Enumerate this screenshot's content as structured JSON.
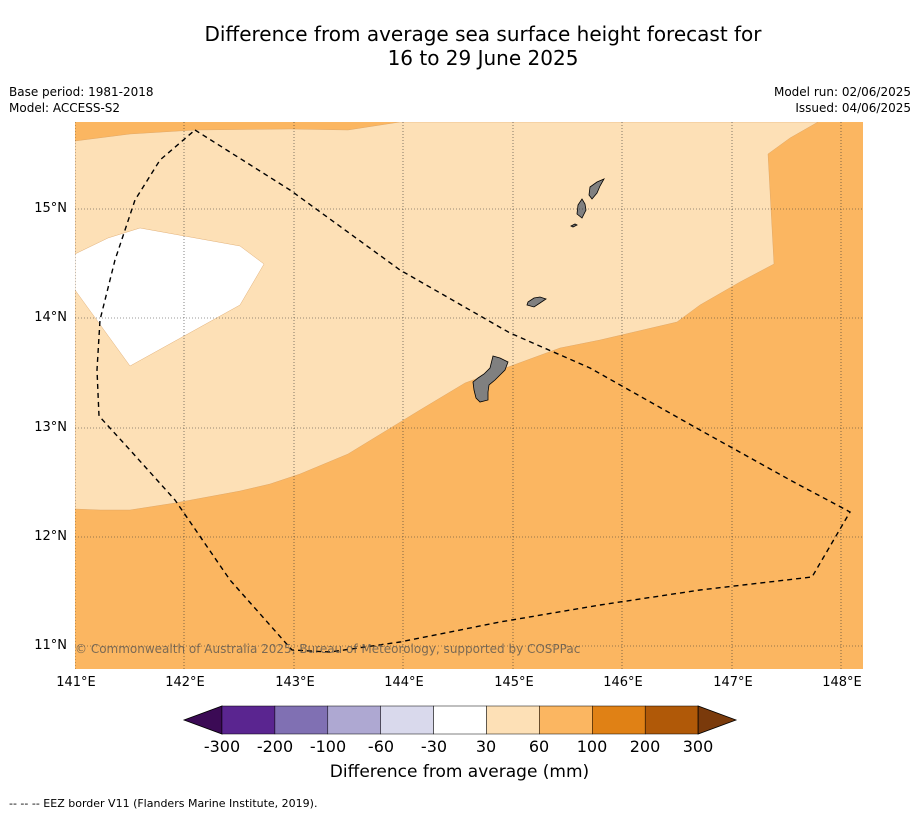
{
  "title_line1": "Difference from average sea surface height forecast for",
  "title_line2": "16 to 29 June 2025",
  "meta": {
    "base_period": "Base period: 1981-2018",
    "model": "Model: ACCESS-S2",
    "model_run": "Model run: 02/06/2025",
    "issued": "Issued: 04/06/2025"
  },
  "credit": "© Commonwealth of Australia 2025, Bureau of Meteorology, supported by COSPPac",
  "footer": "--  --  -- EEZ border V11 (Flanders Marine Institute, 2019).",
  "colorbar": {
    "title": "Difference from average (mm)",
    "ticks": [
      "-300",
      "-200",
      "-100",
      "-60",
      "-30",
      "30",
      "60",
      "100",
      "200",
      "300"
    ],
    "colors": [
      "#3b0a55",
      "#5a2590",
      "#8070b3",
      "#aea8d2",
      "#d9d9ec",
      "#ffffff",
      "#fde0b6",
      "#fbb661",
      "#e08115",
      "#b05908",
      "#7a3a0b"
    ]
  },
  "axes": {
    "lat_labels": [
      "15°N",
      "14°N",
      "13°N",
      "12°N",
      "11°N"
    ],
    "lon_labels": [
      "141°E",
      "142°E",
      "143°E",
      "144°E",
      "145°E",
      "146°E",
      "147°E",
      "148°E"
    ]
  },
  "map_colors": {
    "band_100": "#fbb661",
    "band_60": "#fde0b6",
    "band_30": "#ffffff",
    "land": "#808080",
    "eez": "#000000"
  }
}
